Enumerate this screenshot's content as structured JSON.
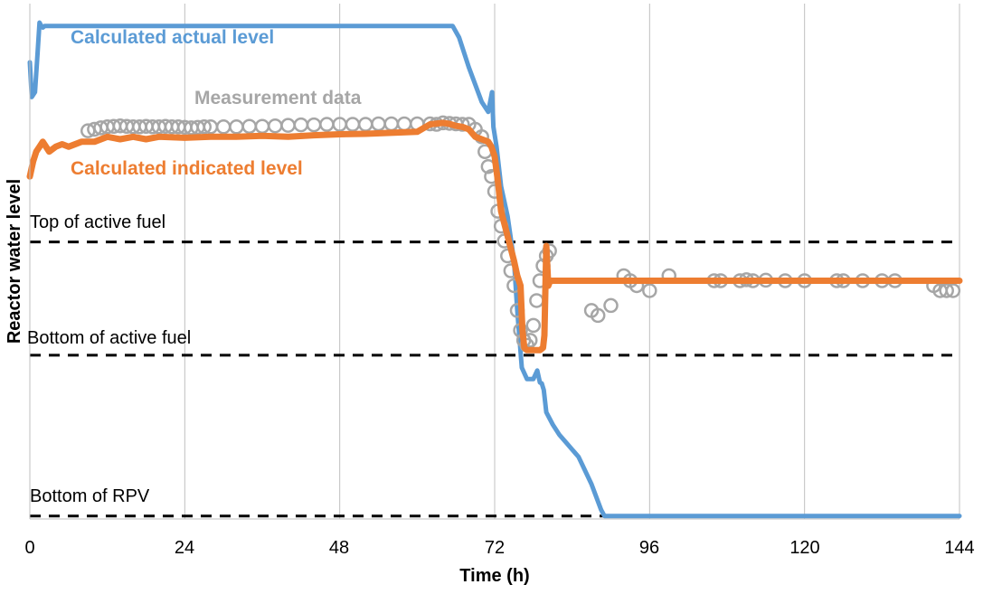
{
  "chart_data": {
    "type": "line",
    "title": "",
    "xlabel": "Time (h)",
    "ylabel": "Reactor water level",
    "xlim": [
      0,
      144
    ],
    "ylim": [
      0,
      100
    ],
    "xticks": [
      0,
      24,
      48,
      72,
      96,
      120,
      144
    ],
    "y_tick_labels_shown": false,
    "grid": "vertical gridlines at x ticks",
    "legend": "inline labels on chart",
    "reference_lines": [
      {
        "label": "Top of active fuel",
        "y": 55.8
      },
      {
        "label": "Bottom of active fuel",
        "y": 33.0
      },
      {
        "label": "Bottom of RPV",
        "y": 0.6
      }
    ],
    "series": [
      {
        "name": "Calculated actual level",
        "color": "#5b9bd5",
        "style": "line",
        "x": [
          0,
          0.3,
          0.8,
          1.2,
          1.5,
          1.7,
          2,
          2.3,
          5,
          20,
          40,
          60,
          65.5,
          66.5,
          68,
          70,
          71,
          71.6,
          71.8,
          72.3,
          73,
          74,
          75,
          75.5,
          76.2,
          77,
          78,
          78.6,
          79,
          79.3,
          79.6,
          80,
          81,
          82,
          83,
          85,
          87,
          88.5,
          89,
          100,
          120,
          135,
          144
        ],
        "y": [
          92,
          85,
          86,
          94,
          100,
          99.5,
          99,
          99.3,
          99.3,
          99.3,
          99.3,
          99.3,
          99.3,
          97,
          91,
          84,
          82,
          86,
          79,
          75,
          67,
          61,
          52,
          42,
          30.5,
          28.2,
          28.2,
          29.9,
          27.5,
          27.3,
          26,
          21.5,
          19,
          17,
          15.5,
          12.5,
          7,
          1.8,
          0.6,
          0.6,
          0.6,
          0.6,
          0.6
        ]
      },
      {
        "name": "Measurement data",
        "color": "#a6a6a6",
        "style": "markers",
        "points": [
          [
            9,
            78.2
          ],
          [
            10,
            78.5
          ],
          [
            11,
            78.8
          ],
          [
            12,
            79
          ],
          [
            13,
            79.1
          ],
          [
            14,
            79.2
          ],
          [
            15,
            79.1
          ],
          [
            16,
            79
          ],
          [
            17,
            79
          ],
          [
            18,
            79.1
          ],
          [
            19,
            79
          ],
          [
            20,
            79
          ],
          [
            21,
            79.1
          ],
          [
            22,
            79
          ],
          [
            23,
            79
          ],
          [
            24,
            78.9
          ],
          [
            25,
            78.8
          ],
          [
            26,
            78.9
          ],
          [
            27,
            79
          ],
          [
            28,
            79
          ],
          [
            30,
            79
          ],
          [
            32,
            79
          ],
          [
            34,
            79.1
          ],
          [
            36,
            79.1
          ],
          [
            38,
            79.2
          ],
          [
            40,
            79.3
          ],
          [
            42,
            79.4
          ],
          [
            44,
            79.4
          ],
          [
            46,
            79.5
          ],
          [
            48,
            79.5
          ],
          [
            50,
            79.5
          ],
          [
            52,
            79.5
          ],
          [
            54,
            79.6
          ],
          [
            56,
            79.6
          ],
          [
            58,
            79.6
          ],
          [
            60,
            79.6
          ],
          [
            62,
            79.6
          ],
          [
            63,
            79.5
          ],
          [
            64,
            79.8
          ],
          [
            65,
            79.7
          ],
          [
            66,
            79.6
          ],
          [
            67,
            79.5
          ],
          [
            68,
            79.5
          ],
          [
            69,
            78.5
          ],
          [
            70,
            77
          ],
          [
            70.5,
            74
          ],
          [
            71,
            71
          ],
          [
            71.5,
            69
          ],
          [
            72,
            66
          ],
          [
            72.5,
            62
          ],
          [
            73,
            59
          ],
          [
            73.5,
            56
          ],
          [
            74,
            53
          ],
          [
            74.5,
            50
          ],
          [
            75,
            47
          ],
          [
            75.5,
            42
          ],
          [
            76,
            38
          ],
          [
            76.5,
            36
          ],
          [
            77,
            35
          ],
          [
            77.5,
            36
          ],
          [
            78,
            39
          ],
          [
            78.5,
            44
          ],
          [
            79,
            48
          ],
          [
            79.5,
            51
          ],
          [
            80,
            53
          ],
          [
            80.5,
            54
          ],
          [
            87,
            42
          ],
          [
            88,
            41
          ],
          [
            90,
            43
          ],
          [
            92,
            49
          ],
          [
            93,
            48
          ],
          [
            94,
            47
          ],
          [
            96,
            46
          ],
          [
            99,
            49
          ],
          [
            106,
            48
          ],
          [
            107,
            48
          ],
          [
            110,
            48
          ],
          [
            111,
            48.2
          ],
          [
            112,
            48
          ],
          [
            114,
            48.1
          ],
          [
            117,
            48
          ],
          [
            120,
            48
          ],
          [
            125,
            48
          ],
          [
            126,
            48
          ],
          [
            129,
            48
          ],
          [
            132,
            48
          ],
          [
            134,
            48
          ],
          [
            140,
            47
          ],
          [
            141,
            46
          ],
          [
            142,
            46
          ],
          [
            143,
            46
          ]
        ]
      },
      {
        "name": "Calculated indicated level",
        "color": "#ed7d31",
        "style": "line",
        "x": [
          0,
          0.5,
          1,
          1.5,
          2,
          3,
          4,
          5,
          6,
          8,
          10,
          12,
          14,
          16,
          18,
          20,
          24,
          28,
          32,
          36,
          40,
          44,
          48,
          52,
          56,
          60,
          62,
          64,
          65,
          66,
          67,
          68,
          69,
          70,
          71,
          71.5,
          72,
          72.5,
          73,
          74,
          75,
          75.5,
          76,
          76.3,
          76.6,
          77,
          78,
          79,
          79.5,
          79.7,
          80,
          80.3,
          80.6,
          81,
          82,
          84,
          86,
          90,
          100,
          110,
          120,
          130,
          140,
          144
        ],
        "y": [
          69,
          72,
          74,
          75,
          76,
          74,
          75,
          75.5,
          75,
          76,
          76,
          77,
          76.5,
          77,
          76.5,
          77,
          76.8,
          77,
          77,
          77.2,
          77,
          77.3,
          77.5,
          77.6,
          77.8,
          78,
          79.5,
          79.8,
          79.6,
          79.2,
          79,
          78.5,
          77,
          76.5,
          76,
          75,
          73,
          68,
          62,
          57,
          52,
          49,
          47,
          38,
          34.5,
          34,
          34,
          34,
          34.5,
          37,
          55,
          47,
          48,
          48,
          48,
          48,
          48,
          48,
          48,
          48,
          48,
          48,
          48,
          48
        ]
      }
    ]
  },
  "labels": {
    "series_actual": "Calculated actual level",
    "series_measured": "Measurement data",
    "series_indicated": "Calculated indicated level",
    "ref_top": "Top of active fuel",
    "ref_bottom_fuel": "Bottom of active fuel",
    "ref_bottom_rpv": "Bottom of RPV",
    "xlabel": "Time (h)",
    "ylabel": "Reactor water level",
    "xticks": [
      "0",
      "24",
      "48",
      "72",
      "96",
      "120",
      "144"
    ]
  }
}
